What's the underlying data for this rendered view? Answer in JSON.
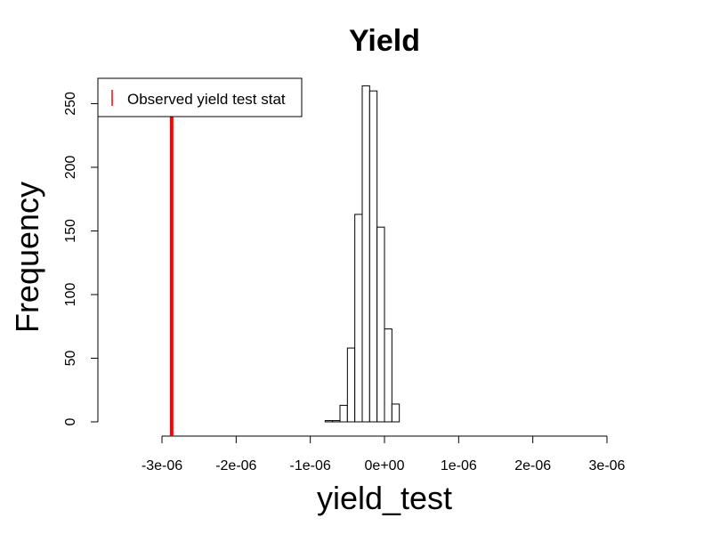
{
  "chart_data": {
    "type": "histogram",
    "title": "Yield",
    "xlabel": "yield_test",
    "ylabel": "Frequency",
    "xlim": [
      -3e-06,
      3e-06
    ],
    "ylim": [
      0,
      265
    ],
    "x_ticks": [
      {
        "value": -3e-06,
        "label": "-3e-06"
      },
      {
        "value": -2e-06,
        "label": "-2e-06"
      },
      {
        "value": -1e-06,
        "label": "-1e-06"
      },
      {
        "value": 0,
        "label": "0e+00"
      },
      {
        "value": 1e-06,
        "label": "1e-06"
      },
      {
        "value": 2e-06,
        "label": "2e-06"
      },
      {
        "value": 3e-06,
        "label": "3e-06"
      }
    ],
    "y_ticks": [
      {
        "value": 0,
        "label": "0"
      },
      {
        "value": 50,
        "label": "50"
      },
      {
        "value": 100,
        "label": "100"
      },
      {
        "value": 150,
        "label": "150"
      },
      {
        "value": 200,
        "label": "200"
      },
      {
        "value": 250,
        "label": "250"
      }
    ],
    "bins": [
      {
        "x0": -8e-07,
        "x1": -7e-07,
        "count": 1
      },
      {
        "x0": -7e-07,
        "x1": -6e-07,
        "count": 1
      },
      {
        "x0": -6e-07,
        "x1": -5e-07,
        "count": 13
      },
      {
        "x0": -5e-07,
        "x1": -4e-07,
        "count": 58
      },
      {
        "x0": -4e-07,
        "x1": -3e-07,
        "count": 163
      },
      {
        "x0": -3e-07,
        "x1": -2e-07,
        "count": 264
      },
      {
        "x0": -2e-07,
        "x1": -1e-07,
        "count": 260
      },
      {
        "x0": -1e-07,
        "x1": 0,
        "count": 153
      },
      {
        "x0": 0,
        "x1": 1e-07,
        "count": 73
      },
      {
        "x0": 1e-07,
        "x1": 2e-07,
        "count": 14
      }
    ],
    "observed_line": {
      "value": -2.87e-06,
      "color": "#ff0000"
    },
    "legend": {
      "position": "top-left",
      "entries": [
        {
          "label": "Observed yield test stat",
          "color": "#ff0000"
        }
      ]
    },
    "grid": false
  }
}
